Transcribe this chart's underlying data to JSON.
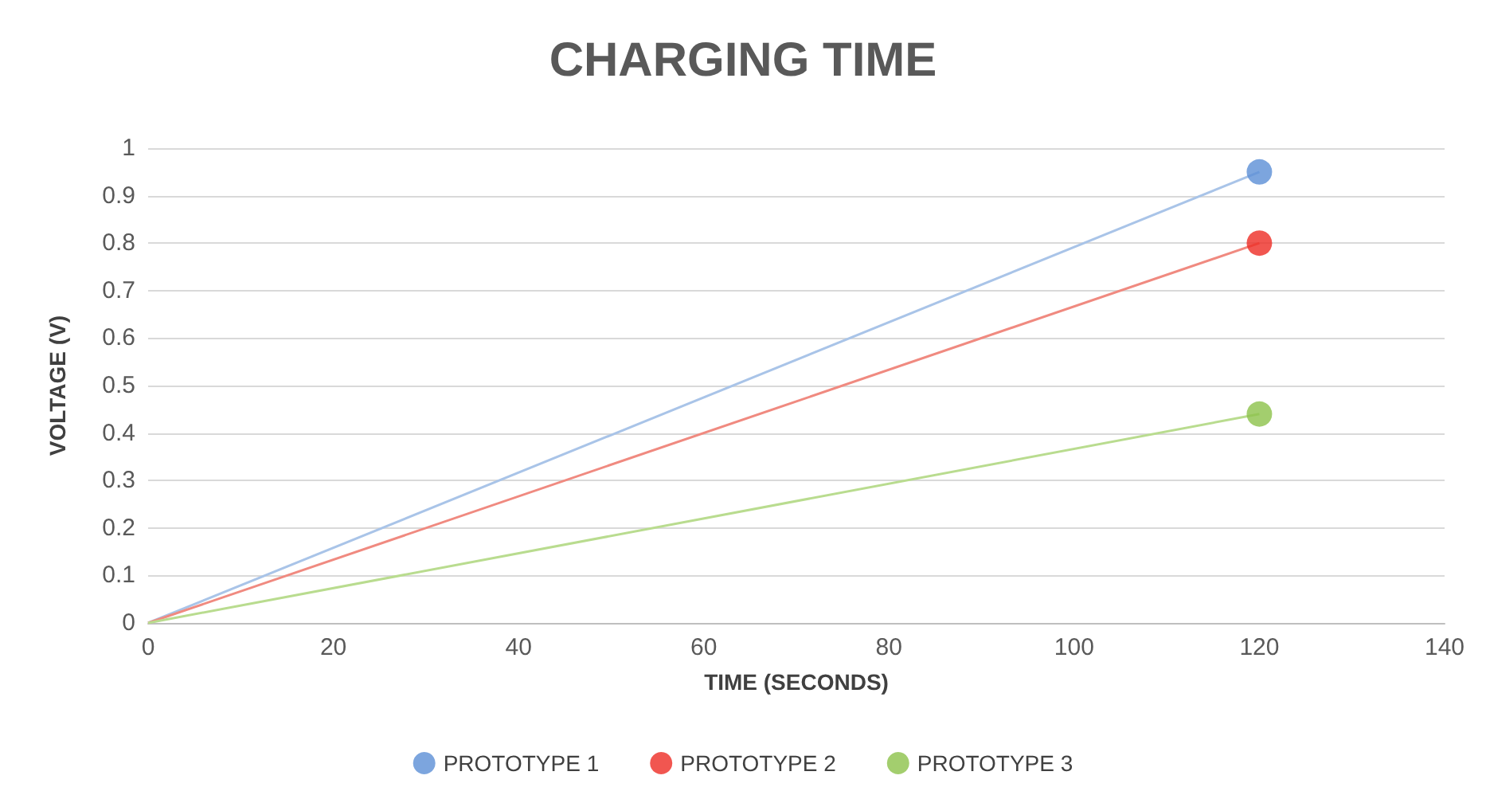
{
  "chart_data": {
    "type": "scatter",
    "title": "CHARGING TIME",
    "xlabel": "TIME (SECONDS)",
    "ylabel": "VOLTAGE (V)",
    "series": [
      {
        "name": "PROTOTYPE 1",
        "color": "#5b8ed6",
        "marker": "circle",
        "values": [
          null,
          0.95
        ]
      },
      {
        "name": "PROTOTYPE 2",
        "color": "#ee2c24",
        "marker": "circle",
        "values": [
          null,
          0.8
        ]
      },
      {
        "name": "PROTOTYPE 3",
        "color": "#8cc24a",
        "marker": "circle",
        "values": [
          null,
          0.44
        ]
      },
      {
        "type": "line",
        "color": "#a9c4e8",
        "marker": "none",
        "values": [
          0,
          0.95
        ]
      },
      {
        "type": "line",
        "color": "#f08a80",
        "marker": "none",
        "values": [
          0,
          0.8
        ]
      },
      {
        "type": "line",
        "color": "#b9dc8f",
        "marker": "none",
        "values": [
          0,
          0.44
        ]
      }
    ],
    "x": [
      0,
      120
    ],
    "xlim": [
      0,
      140
    ],
    "xticks": [
      0,
      20,
      40,
      60,
      80,
      100,
      120,
      140
    ],
    "ylim": [
      0,
      1
    ],
    "yticks": [
      0,
      0.1,
      0.2,
      0.3,
      0.4,
      0.5,
      0.6,
      0.7,
      0.8,
      0.9,
      1
    ],
    "grid": "y",
    "legend": "bottom",
    "line_style": "solid"
  }
}
